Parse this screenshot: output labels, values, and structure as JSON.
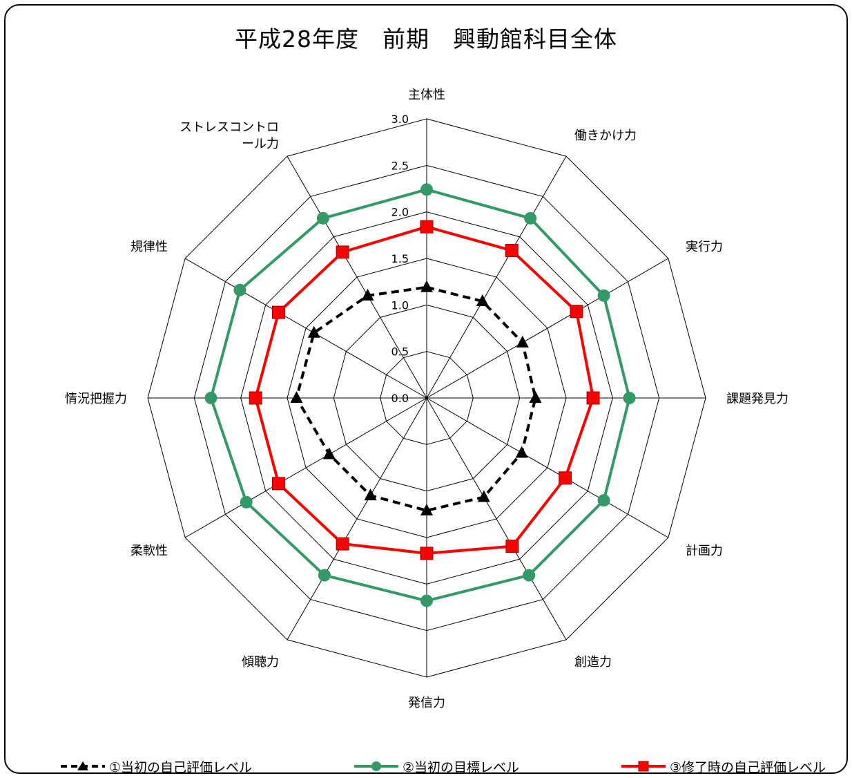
{
  "chart_data": {
    "type": "radar",
    "title": "平成28年度　前期　興動館科目全体",
    "axes": [
      "主体性",
      "働きかけ力",
      "実行力",
      "課題発見力",
      "計画力",
      "創造力",
      "発信力",
      "傾聴力",
      "柔軟性",
      "情況把握力",
      "規律性",
      "ストレスコントロール力"
    ],
    "axis_label_lines": [
      [
        "主体性"
      ],
      [
        "働きかけ力"
      ],
      [
        "実行力"
      ],
      [
        "課題発見力"
      ],
      [
        "計画力"
      ],
      [
        "創造力"
      ],
      [
        "発信力"
      ],
      [
        "傾聴力"
      ],
      [
        "柔軟性"
      ],
      [
        "情況把握力"
      ],
      [
        "規律性"
      ],
      [
        "ストレスコントロ",
        "ール力"
      ]
    ],
    "rmin": 0,
    "rmax": 3.0,
    "ticks": [
      "0.0",
      "0.5",
      "1.0",
      "1.5",
      "2.0",
      "2.5",
      "3.0"
    ],
    "series": [
      {
        "name": "①当初の自己評価レベル",
        "color": "#000000",
        "marker": "triangle",
        "dash": true,
        "values": [
          1.19,
          1.2,
          1.19,
          1.17,
          1.18,
          1.23,
          1.21,
          1.21,
          1.21,
          1.4,
          1.4,
          1.27
        ]
      },
      {
        "name": "②当初の目標レベル",
        "color": "#339966",
        "marker": "circle",
        "dash": false,
        "values": [
          2.24,
          2.23,
          2.2,
          2.18,
          2.2,
          2.2,
          2.18,
          2.2,
          2.24,
          2.32,
          2.32,
          2.23
        ]
      },
      {
        "name": "③修了時の自己評価レベル",
        "color": "#ff0000",
        "marker": "square",
        "dash": false,
        "values": [
          1.84,
          1.83,
          1.86,
          1.79,
          1.72,
          1.84,
          1.67,
          1.81,
          1.84,
          1.84,
          1.84,
          1.81
        ]
      }
    ]
  }
}
